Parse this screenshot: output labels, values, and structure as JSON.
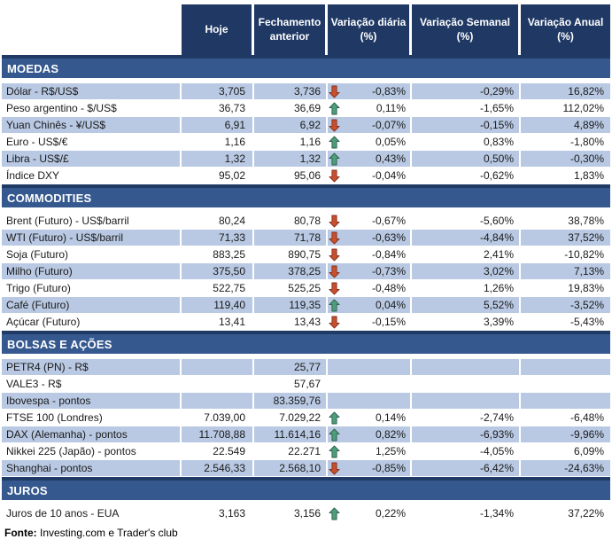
{
  "chart_data": {
    "type": "table",
    "columns": [
      "Hoje",
      "Fechamento anterior",
      "Variação diária (%)",
      "Variação Semanal (%)",
      "Variação Anual (%)"
    ],
    "sections": [
      {
        "title": "MOEDAS",
        "first_row_shaded": true,
        "rows": [
          {
            "label": "Dólar - R$/US$",
            "hoje": "3,705",
            "fechamento": "3,736",
            "arrow": "down",
            "daily": "-0,83%",
            "weekly": "-0,29%",
            "annual": "16,82%"
          },
          {
            "label": "Peso argentino - $/US$",
            "hoje": "36,73",
            "fechamento": "36,69",
            "arrow": "up",
            "daily": "0,11%",
            "weekly": "-1,65%",
            "annual": "112,02%"
          },
          {
            "label": "Yuan Chinês - ¥/US$",
            "hoje": "6,91",
            "fechamento": "6,92",
            "arrow": "down",
            "daily": "-0,07%",
            "weekly": "-0,15%",
            "annual": "4,89%"
          },
          {
            "label": "Euro - US$/€",
            "hoje": "1,16",
            "fechamento": "1,16",
            "arrow": "up",
            "daily": "0,05%",
            "weekly": "0,83%",
            "annual": "-1,80%"
          },
          {
            "label": "Libra - US$/£",
            "hoje": "1,32",
            "fechamento": "1,32",
            "arrow": "up",
            "daily": "0,43%",
            "weekly": "0,50%",
            "annual": "-0,30%"
          },
          {
            "label": "Índice DXY",
            "hoje": "95,02",
            "fechamento": "95,06",
            "arrow": "down",
            "daily": "-0,04%",
            "weekly": "-0,62%",
            "annual": "1,83%"
          }
        ]
      },
      {
        "title": "COMMODITIES",
        "first_row_shaded": false,
        "rows": [
          {
            "label": "Brent (Futuro) - US$/barril",
            "hoje": "80,24",
            "fechamento": "80,78",
            "arrow": "down",
            "daily": "-0,67%",
            "weekly": "-5,60%",
            "annual": "38,78%"
          },
          {
            "label": "WTI (Futuro) - US$/barril",
            "hoje": "71,33",
            "fechamento": "71,78",
            "arrow": "down",
            "daily": "-0,63%",
            "weekly": "-4,84%",
            "annual": "37,52%"
          },
          {
            "label": "Soja (Futuro)",
            "hoje": "883,25",
            "fechamento": "890,75",
            "arrow": "down",
            "daily": "-0,84%",
            "weekly": "2,41%",
            "annual": "-10,82%"
          },
          {
            "label": "Milho (Futuro)",
            "hoje": "375,50",
            "fechamento": "378,25",
            "arrow": "down",
            "daily": "-0,73%",
            "weekly": "3,02%",
            "annual": "7,13%"
          },
          {
            "label": "Trigo (Futuro)",
            "hoje": "522,75",
            "fechamento": "525,25",
            "arrow": "down",
            "daily": "-0,48%",
            "weekly": "1,26%",
            "annual": "19,83%"
          },
          {
            "label": "Café (Futuro)",
            "hoje": "119,40",
            "fechamento": "119,35",
            "arrow": "up",
            "daily": "0,04%",
            "weekly": "5,52%",
            "annual": "-3,52%"
          },
          {
            "label": "Açúcar (Futuro)",
            "hoje": "13,41",
            "fechamento": "13,43",
            "arrow": "down",
            "daily": "-0,15%",
            "weekly": "3,39%",
            "annual": "-5,43%"
          }
        ]
      },
      {
        "title": "BOLSAS E AÇÕES",
        "first_row_shaded": true,
        "rows": [
          {
            "label": "PETR4 (PN) - R$",
            "hoje": "",
            "fechamento": "25,77",
            "arrow": "",
            "daily": "",
            "weekly": "",
            "annual": ""
          },
          {
            "label": "VALE3 - R$",
            "hoje": "",
            "fechamento": "57,67",
            "arrow": "",
            "daily": "",
            "weekly": "",
            "annual": ""
          },
          {
            "label": "Ibovespa - pontos",
            "hoje": "",
            "fechamento": "83.359,76",
            "arrow": "",
            "daily": "",
            "weekly": "",
            "annual": ""
          },
          {
            "label": "FTSE 100 (Londres)",
            "hoje": "7.039,00",
            "fechamento": "7.029,22",
            "arrow": "up",
            "daily": "0,14%",
            "weekly": "-2,74%",
            "annual": "-6,48%"
          },
          {
            "label": "DAX (Alemanha) - pontos",
            "hoje": "11.708,88",
            "fechamento": "11.614,16",
            "arrow": "up",
            "daily": "0,82%",
            "weekly": "-6,93%",
            "annual": "-9,96%"
          },
          {
            "label": "Nikkei 225 (Japão) - pontos",
            "hoje": "22.549",
            "fechamento": "22.271",
            "arrow": "up",
            "daily": "1,25%",
            "weekly": "-4,05%",
            "annual": "6,09%"
          },
          {
            "label": "Shanghai - pontos",
            "hoje": "2.546,33",
            "fechamento": "2.568,10",
            "arrow": "down",
            "daily": "-0,85%",
            "weekly": "-6,42%",
            "annual": "-24,63%"
          }
        ]
      },
      {
        "title": "JUROS",
        "first_row_shaded": false,
        "rows": [
          {
            "label": "Juros de 10 anos - EUA",
            "hoje": "3,163",
            "fechamento": "3,156",
            "arrow": "up",
            "daily": "0,22%",
            "weekly": "-1,34%",
            "annual": "37,22%"
          }
        ]
      }
    ]
  },
  "footer": {
    "source_label": "Fonte:",
    "source_text": " Investing.com e Trader's club"
  },
  "icons": {
    "up": "arrow-up-icon",
    "down": "arrow-down-icon"
  },
  "colors": {
    "header_bg": "#1F3864",
    "header_text": "#FFFFFF",
    "band_bg": "#35588F",
    "band_border": "#203A66",
    "row_shaded": "#B9C9E3",
    "body_text": "#1A1A1A",
    "arrow_up": "#4F9D7B",
    "arrow_up_border": "#2B604C",
    "arrow_down": "#C9502E",
    "arrow_down_border": "#84301D"
  }
}
